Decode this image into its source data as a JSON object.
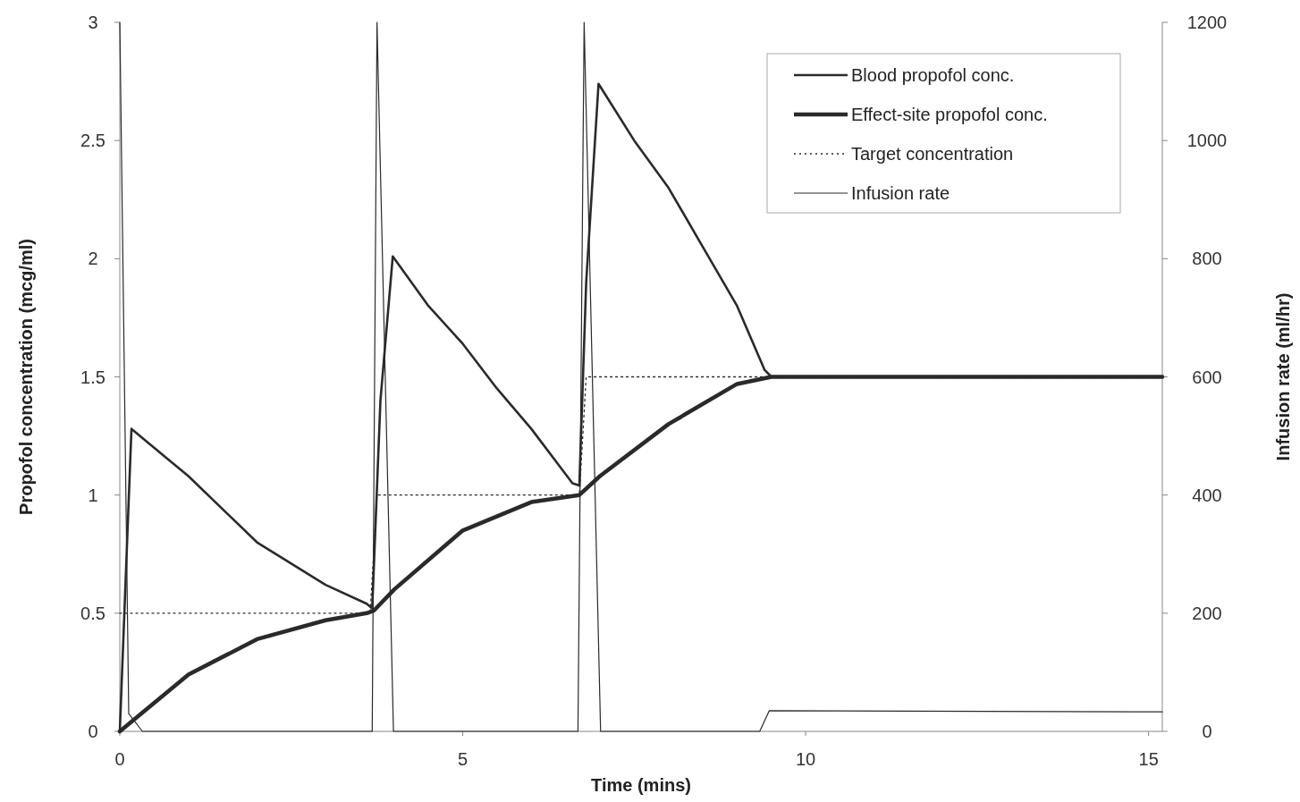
{
  "chart_data": {
    "type": "line",
    "xlabel": "Time (mins)",
    "ylabel": "Propofol concentration (mcg/ml)",
    "y2label": "Infusion rate (ml/hr)",
    "xlim": [
      0,
      15.2
    ],
    "xticks": [
      0,
      5,
      10,
      15
    ],
    "ylim": [
      0,
      3
    ],
    "yticks": [
      0,
      0.5,
      1,
      1.5,
      2,
      2.5,
      3
    ],
    "y2lim": [
      0,
      1200
    ],
    "y2ticks": [
      0,
      200,
      400,
      600,
      800,
      1000,
      1200
    ],
    "legend": "top right",
    "grid": false,
    "series": [
      {
        "name": "Blood propofol conc.",
        "color": "#2a2a2a",
        "x": [
          0,
          0.17,
          0.5,
          1,
          2,
          3,
          3.6,
          3.68,
          3.8,
          3.98,
          4.5,
          5,
          5.5,
          6,
          6.6,
          6.7,
          6.8,
          6.98,
          7.5,
          8,
          8.5,
          9,
          9.4,
          9.5,
          15.2
        ],
        "values": [
          0,
          1.28,
          1.2,
          1.08,
          0.8,
          0.62,
          0.54,
          0.52,
          1.4,
          2.01,
          1.8,
          1.64,
          1.45,
          1.28,
          1.05,
          1.04,
          1.9,
          2.74,
          2.5,
          2.3,
          2.05,
          1.8,
          1.53,
          1.5,
          1.5
        ]
      },
      {
        "name": "Effect-site propofol conc.",
        "color": "#2a2a2a",
        "x": [
          0,
          0.5,
          1,
          2,
          3,
          3.6,
          3.7,
          4,
          5,
          6,
          6.7,
          7,
          8,
          9,
          9.5,
          15.2
        ],
        "values": [
          0,
          0.12,
          0.24,
          0.39,
          0.47,
          0.5,
          0.51,
          0.6,
          0.85,
          0.97,
          1.0,
          1.08,
          1.3,
          1.47,
          1.5,
          1.5
        ]
      },
      {
        "name": "Target concentration",
        "color": "#2a2a2a",
        "line_style": "dotted",
        "x": [
          0,
          3.65,
          3.75,
          6.7,
          6.8,
          15.2
        ],
        "values": [
          0.5,
          0.5,
          1,
          1,
          1.5,
          1.5
        ]
      },
      {
        "name": "Infusion rate",
        "color": "#2a2a2a",
        "axis": "y2",
        "x": [
          0,
          0.13,
          0.33,
          3.68,
          3.75,
          3.99,
          6.68,
          6.77,
          7.01,
          9.33,
          9.47,
          15.2
        ],
        "values": [
          1200,
          30,
          0,
          0,
          1200,
          0,
          0,
          1200,
          0,
          0,
          35,
          33
        ]
      }
    ]
  }
}
